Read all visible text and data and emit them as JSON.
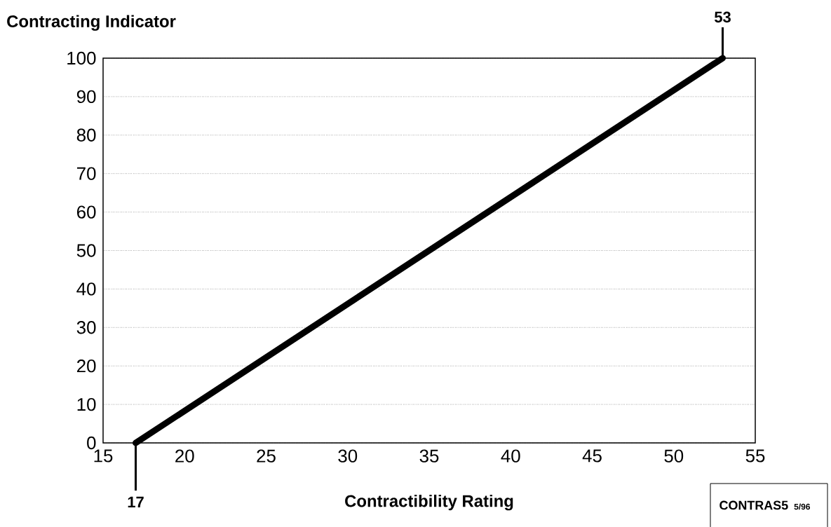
{
  "chart_data": {
    "type": "line",
    "xlabel": "Contractibility Rating",
    "ylabel": "Contracting Indicator",
    "x": [
      17,
      53
    ],
    "series": [
      {
        "color": "#000000",
        "values": [
          0,
          100
        ]
      }
    ],
    "xlim": [
      15,
      55
    ],
    "xticks": [
      15,
      20,
      25,
      30,
      35,
      40,
      45,
      50,
      55
    ],
    "ylim": [
      0,
      100
    ],
    "yticks": [
      0,
      10,
      20,
      30,
      40,
      50,
      60,
      70,
      80,
      90,
      100
    ],
    "grid": "y",
    "line_style": "solid",
    "marker": "none",
    "annotations": [
      {
        "text": "17",
        "x": 17,
        "y": 0
      },
      {
        "text": "53",
        "x": 53,
        "y": 100
      },
      "CONTRAS5",
      "5/96"
    ]
  }
}
